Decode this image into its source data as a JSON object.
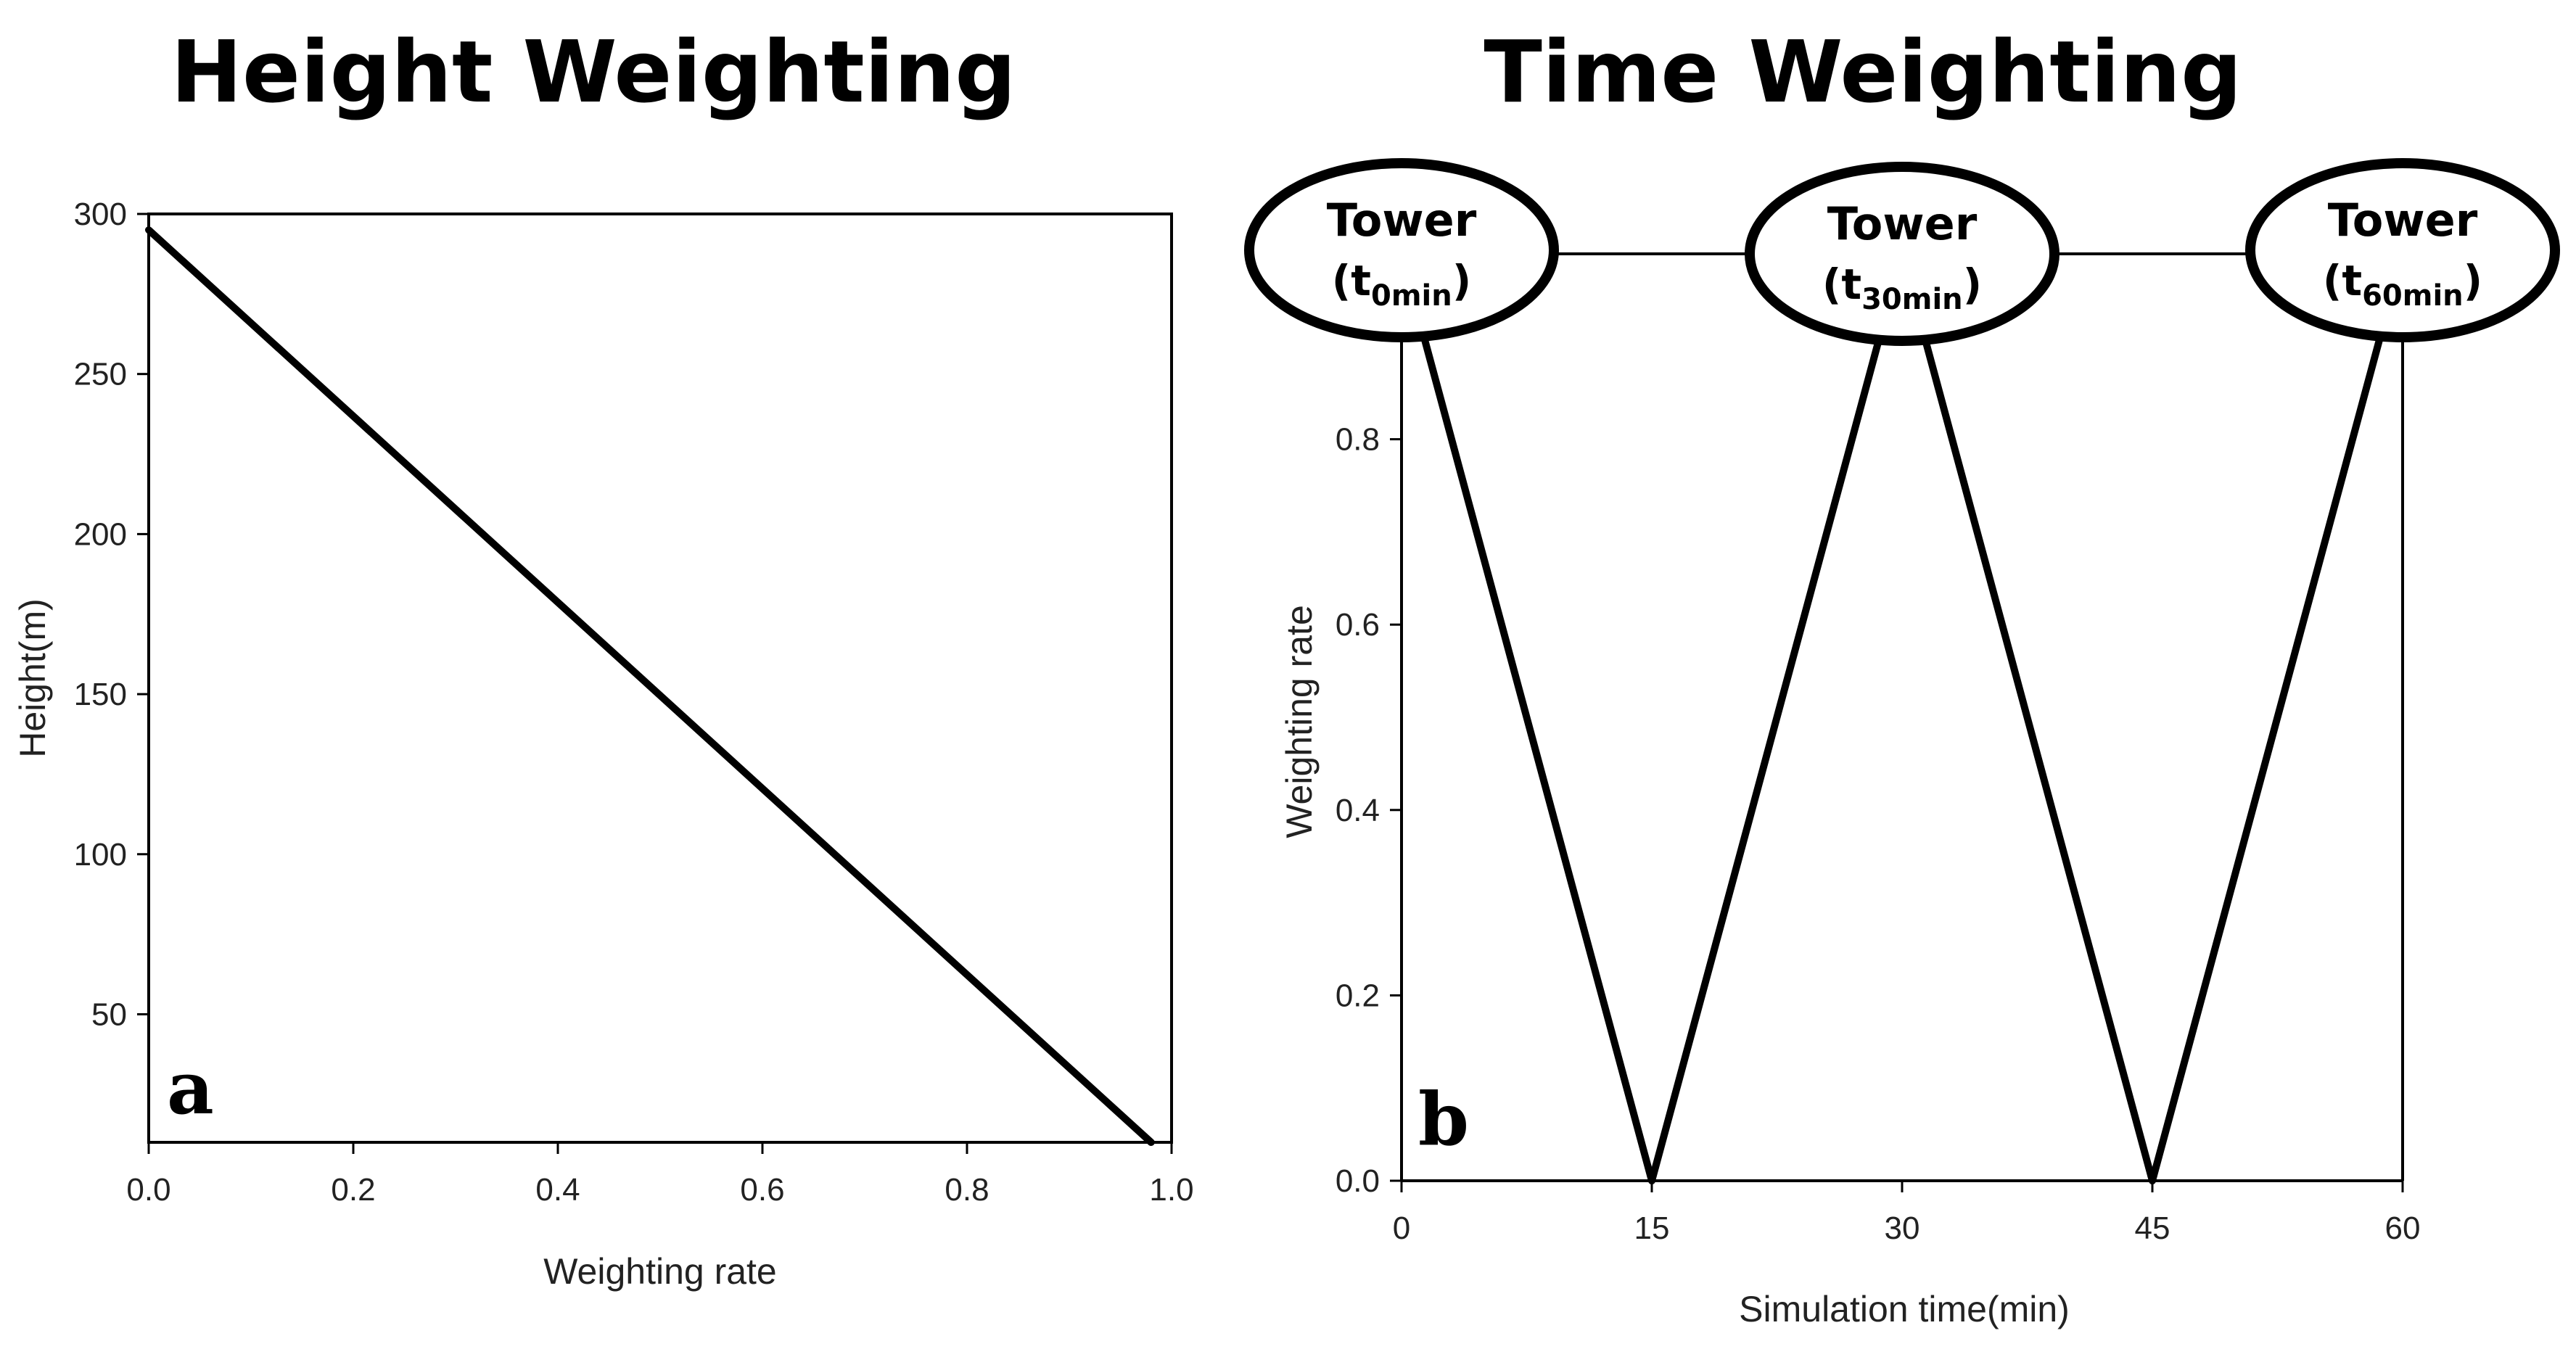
{
  "chart_data": [
    {
      "type": "line",
      "title": "Height Weighting",
      "panel_label": "a",
      "xlabel": "Weighting rate",
      "ylabel": "Height(m)",
      "xlim": [
        0,
        1
      ],
      "ylim": [
        10,
        300
      ],
      "x_ticks": [
        "0.0",
        "0.2",
        "0.4",
        "0.6",
        "0.8",
        "1.0"
      ],
      "y_ticks": [
        "50",
        "100",
        "150",
        "200",
        "250",
        "300"
      ],
      "series": [
        {
          "name": "Height weighting",
          "x": [
            0.0,
            0.98
          ],
          "y": [
            295,
            10
          ]
        }
      ]
    },
    {
      "type": "line",
      "title": "Time Weighting",
      "panel_label": "b",
      "xlabel": "Simulation time(min)",
      "ylabel": "Weighting rate",
      "xlim": [
        0,
        60
      ],
      "ylim": [
        0,
        1
      ],
      "x_ticks": [
        "0",
        "15",
        "30",
        "45",
        "60"
      ],
      "y_ticks": [
        "0.0",
        "0.2",
        "0.4",
        "0.6",
        "0.8"
      ],
      "series": [
        {
          "name": "Tower t0min",
          "x": [
            0,
            15
          ],
          "y": [
            1,
            0
          ]
        },
        {
          "name": "Tower t30min",
          "x": [
            15,
            30,
            45
          ],
          "y": [
            0,
            1,
            0
          ]
        },
        {
          "name": "Tower t60min",
          "x": [
            45,
            60
          ],
          "y": [
            0,
            1
          ]
        }
      ],
      "nodes": [
        {
          "label": "Tower",
          "sub_prefix": "(t",
          "sub": "0min",
          "sub_suffix": ")",
          "time": 0
        },
        {
          "label": "Tower",
          "sub_prefix": "(t",
          "sub": "30min",
          "sub_suffix": ")",
          "time": 30
        },
        {
          "label": "Tower",
          "sub_prefix": "(t",
          "sub": "60min",
          "sub_suffix": ")",
          "time": 60
        }
      ]
    }
  ],
  "colors": {
    "line": "#000000",
    "axis": "#000000",
    "text": "#222222",
    "background": "#ffffff"
  }
}
